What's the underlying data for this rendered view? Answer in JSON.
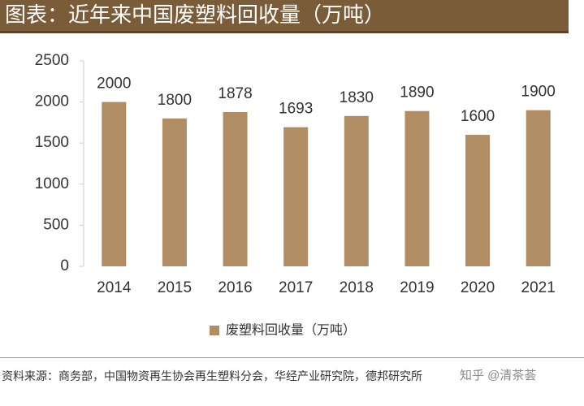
{
  "chart_data": {
    "type": "bar",
    "title": "图表：近年来中国废塑料回收量（万吨）",
    "categories": [
      "2014",
      "2015",
      "2016",
      "2017",
      "2018",
      "2019",
      "2020",
      "2021"
    ],
    "series": [
      {
        "name": "废塑料回收量（万吨）",
        "color": "#b08d62",
        "values": [
          2000,
          1800,
          1878,
          1693,
          1830,
          1890,
          1600,
          1900
        ]
      }
    ],
    "ylim": [
      0,
      2500
    ],
    "yticks": [
      0,
      500,
      1000,
      1500,
      2000,
      2500
    ],
    "grid": false,
    "legend": "bottom",
    "source": "资料来源：商务部，中国物资再生协会再生塑料分会，华经产业研究院，德邦研究所",
    "watermark": "知乎 @清茶荟"
  }
}
